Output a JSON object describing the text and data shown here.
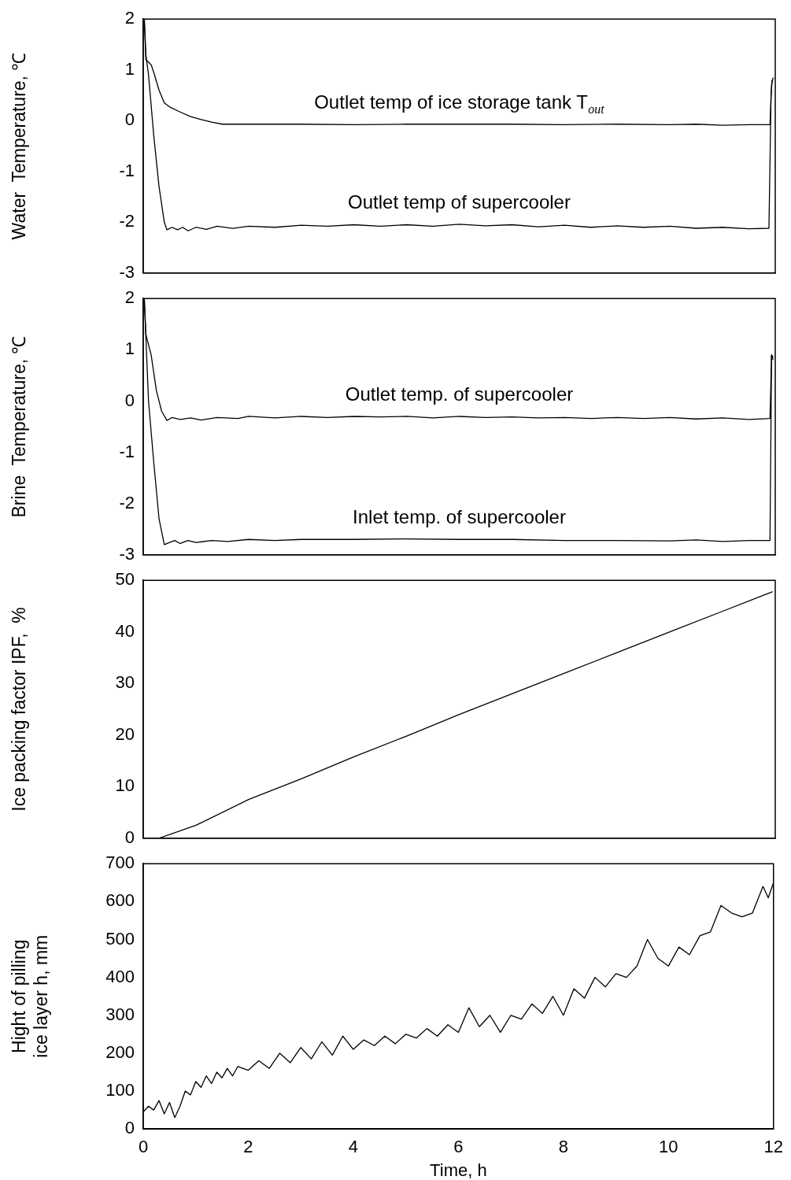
{
  "chart_data": [
    {
      "type": "line",
      "ylabel": "Water  Temperature, ℃",
      "xlim": [
        0,
        12
      ],
      "xticks": [
        0,
        2,
        4,
        6,
        8,
        10,
        12
      ],
      "ylim": [
        -3,
        2
      ],
      "yticks": [
        -3,
        -2,
        -1,
        0,
        1,
        2
      ],
      "tick_labels": "y",
      "series": [
        {
          "name": "Outlet temp of ice storage tank T$_{out}$",
          "color": "#000000",
          "x": [
            0.02,
            0.05,
            0.1,
            0.15,
            0.2,
            0.3,
            0.4,
            0.5,
            0.7,
            0.9,
            1.1,
            1.3,
            1.5,
            2,
            3,
            4,
            5,
            6,
            7,
            8,
            9,
            10,
            10.5,
            11,
            11.5,
            11.9,
            11.93,
            11.96
          ],
          "values": [
            2,
            1.2,
            1.15,
            1.1,
            0.95,
            0.6,
            0.35,
            0.27,
            0.17,
            0.08,
            0.02,
            -0.03,
            -0.07,
            -0.07,
            -0.07,
            -0.08,
            -0.07,
            -0.07,
            -0.07,
            -0.08,
            -0.07,
            -0.08,
            -0.07,
            -0.09,
            -0.08,
            -0.08,
            0.7,
            0.85
          ]
        },
        {
          "name": "Outlet temp of supercooler",
          "color": "#000000",
          "x": [
            0.02,
            0.05,
            0.1,
            0.2,
            0.3,
            0.4,
            0.45,
            0.55,
            0.65,
            0.75,
            0.85,
            1,
            1.2,
            1.4,
            1.7,
            2,
            2.5,
            3,
            3.5,
            4,
            4.5,
            5,
            5.5,
            6,
            6.5,
            7,
            7.5,
            8,
            8.5,
            9,
            9.5,
            10,
            10.5,
            11,
            11.5,
            11.88,
            11.92,
            11.94
          ],
          "values": [
            2,
            1.3,
            0.9,
            -0.3,
            -1.3,
            -2,
            -2.15,
            -2.1,
            -2.15,
            -2.1,
            -2.17,
            -2.1,
            -2.14,
            -2.08,
            -2.12,
            -2.08,
            -2.1,
            -2.06,
            -2.08,
            -2.05,
            -2.08,
            -2.05,
            -2.08,
            -2.04,
            -2.07,
            -2.05,
            -2.09,
            -2.06,
            -2.1,
            -2.07,
            -2.1,
            -2.08,
            -2.12,
            -2.1,
            -2.13,
            -2.12,
            0.5,
            0.8
          ]
        }
      ]
    },
    {
      "type": "line",
      "ylabel": "Brine  Temperature, ℃",
      "xlim": [
        0,
        12
      ],
      "xticks": [
        0,
        2,
        4,
        6,
        8,
        10,
        12
      ],
      "ylim": [
        -3,
        2
      ],
      "yticks": [
        -3,
        -2,
        -1,
        0,
        1,
        2
      ],
      "tick_labels": "y",
      "series": [
        {
          "name": "Outlet temp. of supercooler",
          "color": "#000000",
          "x": [
            0.02,
            0.05,
            0.15,
            0.25,
            0.35,
            0.45,
            0.55,
            0.7,
            0.9,
            1.1,
            1.4,
            1.8,
            2,
            2.5,
            3,
            3.5,
            4,
            4.5,
            5,
            5.5,
            6,
            6.5,
            7,
            7.5,
            8,
            8.5,
            9,
            9.5,
            10,
            10.5,
            11,
            11.5,
            11.9,
            11.93,
            11.96
          ],
          "values": [
            2,
            1.3,
            0.9,
            0.2,
            -0.2,
            -0.38,
            -0.32,
            -0.36,
            -0.33,
            -0.37,
            -0.32,
            -0.34,
            -0.3,
            -0.33,
            -0.3,
            -0.32,
            -0.3,
            -0.31,
            -0.3,
            -0.33,
            -0.3,
            -0.32,
            -0.31,
            -0.33,
            -0.32,
            -0.34,
            -0.32,
            -0.34,
            -0.32,
            -0.35,
            -0.33,
            -0.36,
            -0.34,
            0.9,
            0.8
          ]
        },
        {
          "name": "Inlet temp. of supercooler",
          "color": "#000000",
          "x": [
            0.02,
            0.06,
            0.1,
            0.2,
            0.3,
            0.4,
            0.5,
            0.6,
            0.7,
            0.85,
            1,
            1.3,
            1.6,
            2,
            2.5,
            3,
            4,
            5,
            6,
            7,
            8,
            9,
            10,
            10.5,
            11,
            11.5,
            11.9,
            11.93,
            11.96
          ],
          "values": [
            2,
            1,
            0,
            -1.2,
            -2.3,
            -2.8,
            -2.76,
            -2.72,
            -2.78,
            -2.72,
            -2.76,
            -2.72,
            -2.74,
            -2.7,
            -2.72,
            -2.7,
            -2.7,
            -2.69,
            -2.7,
            -2.7,
            -2.72,
            -2.72,
            -2.73,
            -2.71,
            -2.74,
            -2.72,
            -2.72,
            0.9,
            0.85
          ]
        }
      ]
    },
    {
      "type": "line",
      "ylabel": "Ice packing factor IPF,  %",
      "xlim": [
        0,
        12
      ],
      "xticks": [
        0,
        2,
        4,
        6,
        8,
        10,
        12
      ],
      "ylim": [
        0,
        50
      ],
      "yticks": [
        0,
        10,
        20,
        30,
        40,
        50
      ],
      "tick_labels": "y",
      "series": [
        {
          "color": "#000000",
          "x": [
            0.3,
            1,
            2,
            3,
            4,
            5,
            6,
            7,
            8,
            9,
            10,
            11,
            11.95
          ],
          "values": [
            0,
            2.5,
            7.5,
            11.5,
            15.8,
            19.8,
            24,
            28,
            32,
            36,
            40,
            44,
            47.8
          ]
        }
      ]
    },
    {
      "type": "line",
      "ylabel": "Hight of pilling ice layer h, mm",
      "xlabel": "Time, h",
      "xlim": [
        0,
        12
      ],
      "xticks": [
        0,
        2,
        4,
        6,
        8,
        10,
        12
      ],
      "ylim": [
        0,
        700
      ],
      "yticks": [
        0,
        100,
        200,
        300,
        400,
        500,
        600,
        700
      ],
      "series": [
        {
          "color": "#000000",
          "x": [
            0,
            0.1,
            0.2,
            0.3,
            0.4,
            0.5,
            0.6,
            0.7,
            0.8,
            0.9,
            1,
            1.1,
            1.2,
            1.3,
            1.4,
            1.5,
            1.6,
            1.7,
            1.8,
            2,
            2.2,
            2.4,
            2.6,
            2.8,
            3,
            3.2,
            3.4,
            3.6,
            3.8,
            4,
            4.2,
            4.4,
            4.6,
            4.8,
            5,
            5.2,
            5.4,
            5.6,
            5.8,
            6,
            6.2,
            6.4,
            6.6,
            6.8,
            7,
            7.2,
            7.4,
            7.6,
            7.8,
            8,
            8.2,
            8.4,
            8.6,
            8.8,
            9,
            9.2,
            9.4,
            9.6,
            9.8,
            10,
            10.2,
            10.4,
            10.6,
            10.8,
            11,
            11.2,
            11.4,
            11.6,
            11.8,
            11.9,
            12
          ],
          "values": [
            45,
            60,
            50,
            75,
            40,
            70,
            30,
            60,
            100,
            90,
            125,
            110,
            140,
            120,
            150,
            135,
            160,
            140,
            165,
            155,
            180,
            160,
            200,
            175,
            215,
            185,
            230,
            195,
            245,
            210,
            235,
            220,
            245,
            225,
            250,
            240,
            265,
            245,
            275,
            255,
            320,
            270,
            300,
            255,
            300,
            290,
            330,
            305,
            350,
            300,
            370,
            345,
            400,
            375,
            410,
            400,
            430,
            500,
            450,
            430,
            480,
            460,
            510,
            520,
            590,
            570,
            560,
            570,
            640,
            610,
            650
          ]
        }
      ]
    }
  ]
}
